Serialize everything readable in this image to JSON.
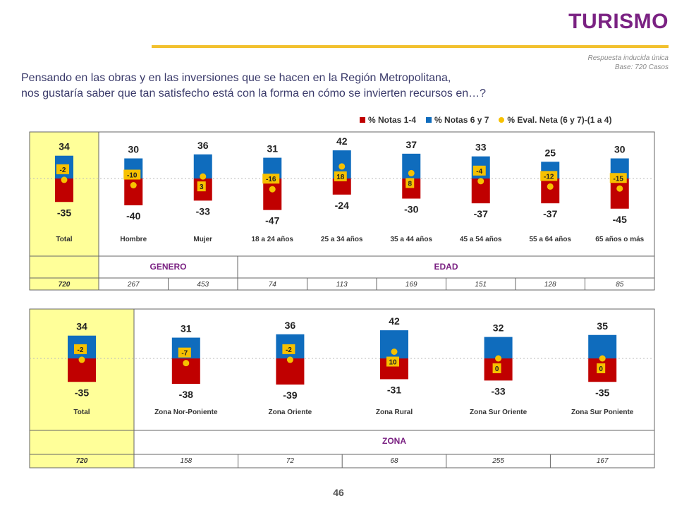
{
  "header": {
    "title": "TURISMO",
    "meta_line1": "Respuesta inducida única",
    "meta_line2": "Base: 720 Casos",
    "question_line1": "Pensando en las obras y en las inversiones que se hacen en la Región Metropolitana,",
    "question_line2": "nos gustaría saber que tan satisfecho está con la forma en cómo se invierten recursos en…?"
  },
  "legend": {
    "red_label": "% Notas 1-4",
    "blue_label": "% Notas 6 y 7",
    "dot_label": "% Eval. Neta (6 y 7)-(1 a 4)"
  },
  "colors": {
    "red": "#c00000",
    "blue": "#0f6cbd",
    "yellow": "#f7c100",
    "highlight": "#ffff99",
    "purple": "#7a2182"
  },
  "page_number": "46",
  "chart_data": [
    {
      "type": "bar",
      "categories": [
        "Total",
        "Hombre",
        "Mujer",
        "18 a 24 años",
        "25 a 34 años",
        "35 a 44 años",
        "45 a 54 años",
        "55 a 64 años",
        "65 años o más"
      ],
      "series": [
        {
          "name": "% Notas 1-4",
          "values": [
            -35,
            -40,
            -33,
            -47,
            -24,
            -30,
            -37,
            -37,
            -45
          ]
        },
        {
          "name": "% Notas 6 y 7",
          "values": [
            34,
            30,
            36,
            31,
            42,
            37,
            33,
            25,
            30
          ]
        },
        {
          "name": "% Eval. Neta (6 y 7)-(1 a 4)",
          "values": [
            -2,
            -10,
            3,
            -16,
            18,
            8,
            -4,
            -12,
            -15
          ]
        }
      ],
      "groups": [
        {
          "label": "GENERO",
          "span": 2
        },
        {
          "label": "EDAD",
          "span": 6
        }
      ],
      "base": [
        "720",
        "267",
        "453",
        "74",
        "113",
        "169",
        "151",
        "128",
        "85"
      ]
    },
    {
      "type": "bar",
      "categories": [
        "Total",
        "Zona Nor-Poniente",
        "Zona Oriente",
        "Zona Rural",
        "Zona Sur Oriente",
        "Zona Sur Poniente"
      ],
      "series": [
        {
          "name": "% Notas 1-4",
          "values": [
            -35,
            -38,
            -39,
            -31,
            -33,
            -35
          ]
        },
        {
          "name": "% Notas 6 y 7",
          "values": [
            34,
            31,
            36,
            42,
            32,
            35
          ]
        },
        {
          "name": "% Eval. Neta (6 y 7)-(1 a 4)",
          "values": [
            -2,
            -7,
            -2,
            10,
            0,
            0
          ]
        }
      ],
      "groups": [
        {
          "label": "ZONA",
          "span": 5
        }
      ],
      "base": [
        "720",
        "158",
        "72",
        "68",
        "255",
        "167"
      ]
    }
  ]
}
